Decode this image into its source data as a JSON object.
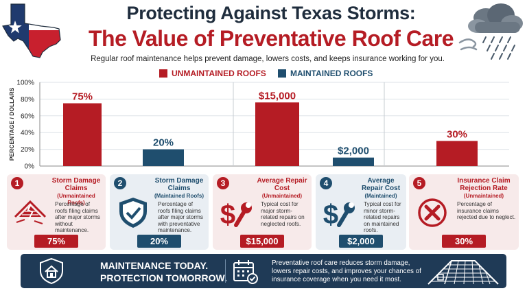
{
  "header": {
    "title_line1": "Protecting Against Texas Storms:",
    "title_line2": "The Value of Preventative Roof Care",
    "subtitle": "Regular roof maintenance helps prevent damage, lowers costs, and keeps insurance working for you."
  },
  "colors": {
    "unmaintained": "#b51c24",
    "maintained": "#1f4e6e",
    "navy": "#1f3a56"
  },
  "chart_data": [
    {
      "type": "bar",
      "ylabel": "PERCENTAGE / DOLLARS",
      "ylim": [
        0,
        100
      ],
      "yticks": [
        "0%",
        "20%",
        "40%",
        "60%",
        "80%",
        "100%"
      ],
      "legend": [
        {
          "name": "UNMAINTAINED ROOFS",
          "color": "#b51c24"
        },
        {
          "name": "MAINTAINED ROOFS",
          "color": "#1f4e6e"
        }
      ],
      "categories": [
        "Storm Damage Claims (Unmaintained)",
        "Storm Damage Claims (Maintained)"
      ],
      "values": [
        75,
        20
      ],
      "labels": [
        "75%",
        "20%"
      ],
      "series_index": [
        0,
        1
      ]
    },
    {
      "type": "bar",
      "categories": [
        "Average Repair Cost (Unmaintained)",
        "Average Repair Cost (Maintained)"
      ],
      "values": [
        15000,
        2000
      ],
      "labels": [
        "$15,000",
        "$2,000"
      ],
      "series_index": [
        0,
        1
      ]
    },
    {
      "type": "bar",
      "categories": [
        "Insurance Claim Rejection Rate (Unmaintained)"
      ],
      "values": [
        30
      ],
      "labels": [
        "30%"
      ],
      "series_index": [
        0
      ]
    }
  ],
  "cards": [
    {
      "num": "1",
      "title": "Storm Damage Claims",
      "sub": "(Unmaintained Roofs)",
      "desc": "Percentage of roofs filing claims after major storms without maintenance.",
      "value": "75%",
      "color": "#b51c24",
      "icon": "damaged-roof-icon"
    },
    {
      "num": "2",
      "title": "Storm Damage Claims",
      "sub": "(Maintained Roofs)",
      "desc": "Percentage of roofs filing claims after major storms with preventative maintenance.",
      "value": "20%",
      "color": "#1f4e6e",
      "icon": "shield-check-icon"
    },
    {
      "num": "3",
      "title": "Average Repair Cost",
      "sub": "(Unmaintained)",
      "desc": "Typical cost for major storm-related repairs on neglected roofs.",
      "value": "$15,000",
      "color": "#b51c24",
      "icon": "dollar-wrench-icon"
    },
    {
      "num": "4",
      "title": "Average Repair Cost",
      "sub": "(Maintained)",
      "desc": "Typical cost for minor storm-related repairs on maintained roofs.",
      "value": "$2,000",
      "color": "#1f4e6e",
      "icon": "dollar-wrench-icon"
    },
    {
      "num": "5",
      "title": "Insurance Claim Rejection Rate",
      "sub": "(Unmaintained)",
      "desc": "Percentage of insurance claims rejected due to neglect.",
      "value": "30%",
      "color": "#b51c24",
      "icon": "rejected-x-icon"
    }
  ],
  "banner": {
    "left_line1": "MAINTENANCE TODAY.",
    "left_line2": "PROTECTION TOMORROW.",
    "right_text": "Preventative roof care reduces storm damage, lowers repair costs, and improves your chances of insurance coverage when you need it most."
  }
}
